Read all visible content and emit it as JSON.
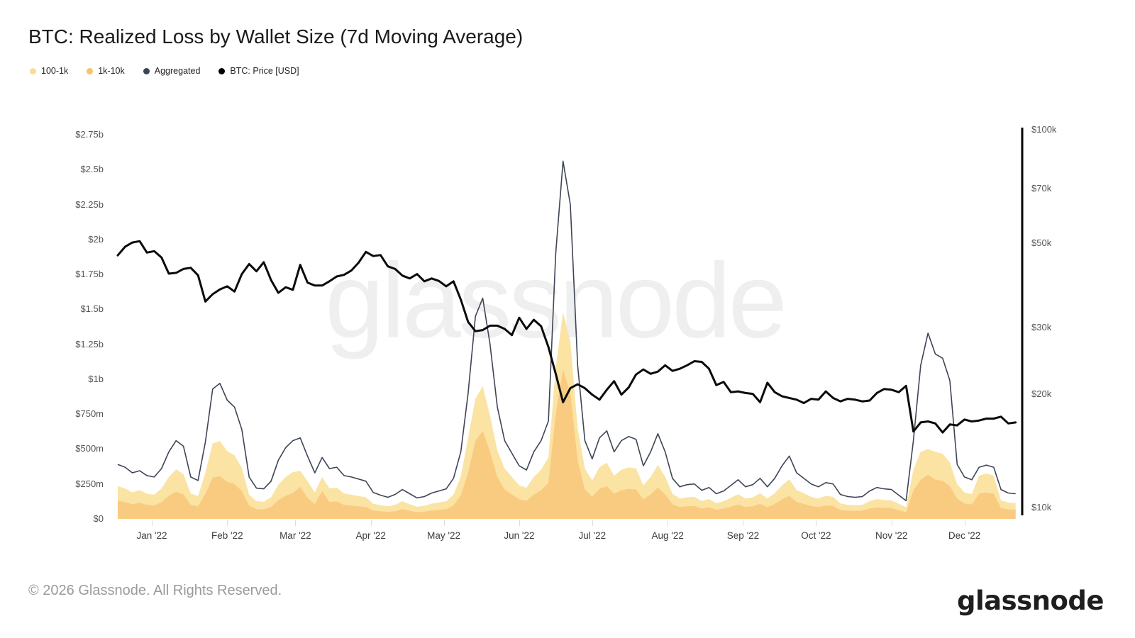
{
  "title": "BTC: Realized Loss by Wallet Size (7d Moving Average)",
  "watermark": {
    "text": "glassnode"
  },
  "footer": {
    "copyright": "© 2026 Glassnode. All Rights Reserved.",
    "logo_text": "glassnode"
  },
  "legend": [
    {
      "key": "100-1k",
      "label": "100-1k",
      "color": "#f9dd94"
    },
    {
      "key": "1k-10k",
      "label": "1k-10k",
      "color": "#f6c469"
    },
    {
      "key": "aggregated",
      "label": "Aggregated",
      "color": "#3d4454"
    },
    {
      "key": "btc-price",
      "label": "BTC: Price [USD]",
      "color": "#000000"
    }
  ],
  "chart_data": {
    "type": "area",
    "title": "BTC: Realized Loss by Wallet Size (7d Moving Average)",
    "x_unit": "days since 2022-01-01 (negative = Dec 2021)",
    "grid": "off",
    "legend_position": "top-left",
    "days": [
      -14,
      -11,
      -8,
      -5,
      -2,
      1,
      4,
      7,
      10,
      13,
      16,
      19,
      22,
      25,
      28,
      31,
      34,
      37,
      40,
      43,
      46,
      49,
      52,
      55,
      58,
      61,
      64,
      67,
      70,
      73,
      76,
      79,
      82,
      85,
      88,
      91,
      94,
      97,
      100,
      103,
      106,
      109,
      112,
      115,
      118,
      121,
      124,
      127,
      130,
      133,
      136,
      139,
      142,
      145,
      148,
      151,
      154,
      157,
      160,
      163,
      166,
      169,
      172,
      175,
      178,
      181,
      184,
      187,
      190,
      193,
      196,
      199,
      202,
      205,
      208,
      211,
      214,
      217,
      220,
      223,
      226,
      229,
      232,
      235,
      238,
      241,
      244,
      247,
      250,
      253,
      256,
      259,
      262,
      265,
      268,
      271,
      274,
      277,
      280,
      283,
      286,
      289,
      292,
      295,
      298,
      301,
      304,
      307,
      310,
      313,
      316,
      319,
      322,
      325,
      328,
      331,
      334,
      337,
      340,
      343,
      346,
      349,
      352,
      355
    ],
    "series": [
      {
        "name": "100-1k",
        "type": "area",
        "stacked": true,
        "axis": "left",
        "unit": "USD millions",
        "color": "#fbe3a3",
        "values": [
          105,
          98,
          85,
          92,
          80,
          78,
          98,
          135,
          160,
          145,
          82,
          74,
          150,
          245,
          253,
          220,
          205,
          165,
          78,
          57,
          55,
          70,
          110,
          135,
          150,
          115,
          120,
          85,
          100,
          98,
          100,
          82,
          78,
          74,
          70,
          49,
          44,
          40,
          45,
          57,
          47,
          39,
          42,
          49,
          53,
          57,
          78,
          135,
          250,
          300,
          320,
          260,
          190,
          150,
          125,
          100,
          93,
          125,
          147,
          180,
          330,
          410,
          370,
          230,
          150,
          115,
          155,
          168,
          129,
          147,
          154,
          150,
          100,
          126,
          161,
          126,
          75,
          61,
          65,
          66,
          54,
          59,
          47,
          53,
          63,
          74,
          61,
          64,
          77,
          61,
          77,
          100,
          118,
          86,
          77,
          66,
          61,
          69,
          66,
          46,
          42,
          41,
          42,
          53,
          59,
          57,
          55,
          45,
          34,
          147,
          200,
          185,
          200,
          195,
          168,
          104,
          79,
          74,
          129,
          136,
          129,
          55,
          49,
          47
        ]
      },
      {
        "name": "1k-10k",
        "type": "area",
        "stacked": true,
        "axis": "left",
        "unit": "USD millions",
        "color": "#f9cb80",
        "values": [
          130,
          120,
          105,
          115,
          100,
          95,
          120,
          165,
          195,
          175,
          100,
          90,
          180,
          295,
          305,
          265,
          250,
          200,
          95,
          70,
          68,
          85,
          135,
          165,
          185,
          230,
          150,
          105,
          200,
          120,
          125,
          100,
          95,
          90,
          85,
          60,
          55,
          50,
          55,
          70,
          58,
          48,
          52,
          60,
          65,
          70,
          95,
          170,
          330,
          560,
          630,
          480,
          300,
          210,
          175,
          140,
          130,
          175,
          205,
          260,
          750,
          1070,
          900,
          420,
          210,
          160,
          215,
          235,
          180,
          205,
          215,
          210,
          140,
          175,
          225,
          175,
          105,
          85,
          90,
          92,
          75,
          83,
          66,
          74,
          88,
          103,
          85,
          90,
          107,
          85,
          107,
          140,
          165,
          120,
          107,
          92,
          85,
          96,
          92,
          64,
          59,
          57,
          59,
          74,
          83,
          79,
          77,
          63,
          48,
          205,
          280,
          315,
          280,
          272,
          235,
          145,
          110,
          103,
          180,
          190,
          180,
          77,
          68,
          66
        ]
      },
      {
        "name": "Aggregated",
        "type": "line",
        "axis": "left",
        "unit": "USD millions",
        "color": "#3e4556",
        "values": [
          390,
          370,
          330,
          345,
          310,
          300,
          360,
          480,
          560,
          520,
          300,
          275,
          550,
          930,
          970,
          850,
          800,
          640,
          300,
          220,
          215,
          270,
          420,
          510,
          560,
          580,
          450,
          330,
          440,
          360,
          370,
          310,
          300,
          285,
          270,
          190,
          170,
          155,
          175,
          210,
          180,
          150,
          160,
          185,
          200,
          215,
          290,
          480,
          900,
          1450,
          1580,
          1250,
          800,
          560,
          470,
          380,
          350,
          480,
          560,
          700,
          1900,
          2560,
          2250,
          1100,
          560,
          430,
          580,
          630,
          480,
          560,
          590,
          570,
          380,
          480,
          610,
          480,
          290,
          230,
          245,
          250,
          205,
          225,
          180,
          200,
          240,
          280,
          230,
          245,
          290,
          230,
          290,
          380,
          450,
          330,
          290,
          250,
          230,
          260,
          250,
          175,
          160,
          155,
          160,
          200,
          225,
          215,
          210,
          170,
          130,
          560,
          1100,
          1330,
          1180,
          1150,
          990,
          390,
          300,
          280,
          370,
          385,
          370,
          210,
          185,
          180
        ]
      },
      {
        "name": "BTC: Price [USD]",
        "type": "line",
        "axis": "right",
        "unit": "USD thousands",
        "color": "#0b0b0b",
        "values": [
          46.5,
          49.0,
          50.3,
          50.7,
          47.3,
          47.7,
          45.9,
          41.6,
          41.8,
          42.8,
          43.1,
          41.2,
          35.1,
          36.7,
          37.8,
          38.5,
          37.3,
          41.5,
          44.1,
          42.2,
          44.6,
          40.0,
          37.0,
          38.3,
          37.7,
          43.9,
          39.4,
          38.7,
          38.7,
          39.7,
          40.9,
          41.3,
          42.4,
          44.5,
          47.5,
          46.3,
          46.6,
          43.5,
          42.8,
          41.1,
          40.4,
          41.5,
          39.7,
          40.4,
          39.8,
          38.5,
          39.7,
          35.5,
          31.0,
          29.3,
          29.5,
          30.3,
          30.3,
          29.7,
          28.6,
          31.8,
          29.7,
          31.4,
          30.2,
          26.6,
          22.6,
          19.0,
          20.7,
          21.2,
          20.7,
          19.9,
          19.3,
          20.5,
          21.6,
          19.9,
          20.8,
          22.5,
          23.2,
          22.6,
          22.9,
          23.8,
          23.0,
          23.3,
          23.8,
          24.4,
          24.3,
          23.3,
          21.1,
          21.5,
          20.2,
          20.3,
          20.1,
          20.0,
          19.0,
          21.4,
          20.2,
          19.7,
          19.5,
          19.3,
          18.9,
          19.4,
          19.3,
          20.3,
          19.5,
          19.1,
          19.4,
          19.3,
          19.1,
          19.2,
          20.1,
          20.6,
          20.5,
          20.2,
          21.0,
          15.9,
          16.8,
          16.9,
          16.7,
          15.8,
          16.6,
          16.5,
          17.1,
          16.9,
          17.0,
          17.2,
          17.2,
          17.4,
          16.7,
          16.8
        ]
      }
    ],
    "left_axis": {
      "unit": "USD",
      "scale": "linear",
      "range_millions": [
        0,
        2750
      ],
      "tick_values_millions": [
        0,
        250,
        500,
        750,
        1000,
        1250,
        1500,
        1750,
        2000,
        2250,
        2500,
        2750
      ],
      "tick_labels": [
        "$0",
        "$250m",
        "$500m",
        "$750m",
        "$1b",
        "$1.25b",
        "$1.5b",
        "$1.75b",
        "$2b",
        "$2.25b",
        "$2.5b",
        "$2.75b"
      ]
    },
    "right_axis": {
      "unit": "USD",
      "scale": "log",
      "range_thousands": [
        10,
        100
      ],
      "tick_values_thousands": [
        10,
        20,
        30,
        50,
        70,
        100
      ],
      "tick_labels": [
        "$10k",
        "$20k",
        "$30k",
        "$50k",
        "$70k",
        "$100k"
      ]
    },
    "x_axis": {
      "month_labels": [
        "Jan '22",
        "Feb '22",
        "Mar '22",
        "Apr '22",
        "May '22",
        "Jun '22",
        "Jul '22",
        "Aug '22",
        "Sep '22",
        "Oct '22",
        "Nov '22",
        "Dec '22"
      ],
      "month_day_offsets": [
        0,
        31,
        59,
        90,
        120,
        151,
        181,
        212,
        243,
        273,
        304,
        334
      ]
    }
  }
}
